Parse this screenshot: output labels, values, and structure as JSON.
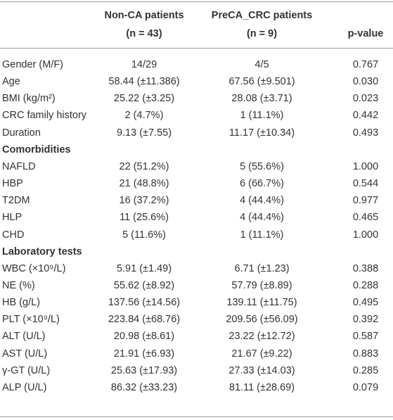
{
  "table": {
    "header": [
      "Non-CA patients",
      "PreCA_CRC patients",
      "p-value"
    ],
    "subheader": [
      "(n = 43)",
      "(n = 9)"
    ],
    "rows": [
      [
        "Gender (M/F)",
        "14/29",
        "4/5",
        "0.767"
      ],
      [
        "Age",
        "58.44 (±11.386)",
        "67.56 (±9.501)",
        "0.030"
      ],
      [
        "BMI (kg/m²)",
        "25.22 (±3.25)",
        "28.08 (±3.71)",
        "0.023"
      ],
      [
        "CRC family history",
        "2 (4.7%)",
        "1 (11.1%)",
        "0.442"
      ],
      [
        "Duration",
        "9.13 (±7.55)",
        "11.17 (±10.34)",
        "0.493"
      ],
      [
        "Comorbidities"
      ],
      [
        "NAFLD",
        "22 (51.2%)",
        "5 (55.6%)",
        "1.000"
      ],
      [
        "HBP",
        "21 (48.8%)",
        "6 (66.7%)",
        "0.544"
      ],
      [
        "T2DM",
        "16 (37.2%)",
        "4 (44.4%)",
        "0.977"
      ],
      [
        "HLP",
        "11 (25.6%)",
        "4 (44.4%)",
        "0.465"
      ],
      [
        "CHD",
        "5 (11.6%)",
        "1 (11.1%)",
        "1.000"
      ],
      [
        "Laboratory tests"
      ],
      [
        "WBC (×10⁹/L)",
        "5.91 (±1.49)",
        "6.71 (±1.23)",
        "0.388"
      ],
      [
        "NE (%)",
        "55.62 (±8.92)",
        "57.79 (±8.89)",
        "0.288"
      ],
      [
        "HB (g/L)",
        "137.56 (±14.56)",
        "139.11 (±11.75)",
        "0.495"
      ],
      [
        "PLT (×10⁹/L)",
        "223.84 (±68.76)",
        "209.56 (±56.09)",
        "0.392"
      ],
      [
        "ALT (U/L)",
        "20.98 (±8.61)",
        "23.22 (±12.72)",
        "0.587"
      ],
      [
        "AST (U/L)",
        "21.91 (±6.93)",
        "21.67 (±9.22)",
        "0.883"
      ],
      [
        "γ-GT (U/L)",
        "25.63 (±17.93)",
        "27.33 (±14.03)",
        "0.285"
      ],
      [
        "ALP (U/L)",
        "86.32 (±33.23)",
        "81.11 (±28.69)",
        "0.079"
      ]
    ]
  }
}
